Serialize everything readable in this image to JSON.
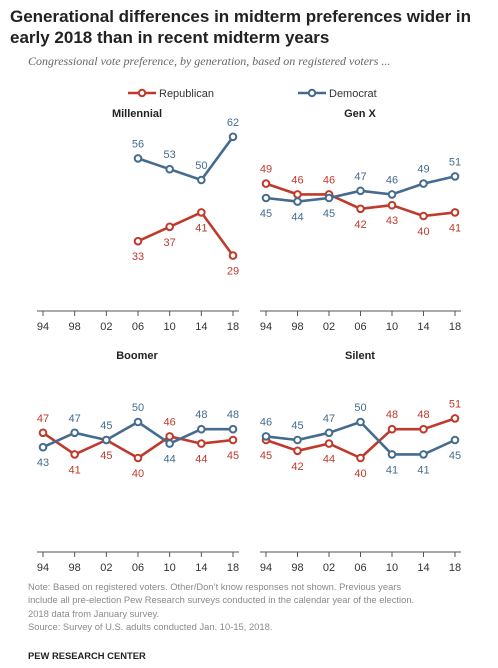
{
  "title": "Generational differences in midterm preferences wider in early 2018 than in recent midterm years",
  "subtitle": "Congressional vote preference, by generation, based on registered voters ...",
  "colors": {
    "republican": "#bf3a2b",
    "democrat": "#456c8e",
    "axis": "#555555",
    "label": "#333333"
  },
  "chart_data": {
    "type": "line",
    "categories": [
      "94",
      "98",
      "02",
      "06",
      "10",
      "14",
      "18"
    ],
    "legend": [
      "Republican",
      "Democrat"
    ],
    "legend_position": "top",
    "ylim": [
      25,
      65
    ],
    "grid": false,
    "panels": [
      {
        "title": "Millennial",
        "series": [
          {
            "name": "Republican",
            "values": [
              null,
              null,
              null,
              33,
              37,
              41,
              29
            ]
          },
          {
            "name": "Democrat",
            "values": [
              null,
              null,
              null,
              56,
              53,
              50,
              62
            ]
          }
        ]
      },
      {
        "title": "Gen X",
        "series": [
          {
            "name": "Republican",
            "values": [
              49,
              46,
              46,
              42,
              43,
              40,
              41
            ]
          },
          {
            "name": "Democrat",
            "values": [
              45,
              44,
              45,
              47,
              46,
              49,
              51
            ]
          }
        ]
      },
      {
        "title": "Boomer",
        "series": [
          {
            "name": "Republican",
            "values": [
              47,
              41,
              45,
              40,
              46,
              44,
              45
            ]
          },
          {
            "name": "Democrat",
            "values": [
              43,
              47,
              45,
              50,
              44,
              48,
              48
            ]
          }
        ]
      },
      {
        "title": "Silent",
        "series": [
          {
            "name": "Republican",
            "values": [
              45,
              42,
              44,
              40,
              48,
              48,
              51
            ]
          },
          {
            "name": "Democrat",
            "values": [
              46,
              45,
              47,
              50,
              41,
              41,
              45
            ]
          }
        ]
      }
    ]
  },
  "notes": [
    "Note: Based on registered voters. Other/Don’t know responses not shown. Previous years",
    "include all pre-election Pew Research surveys conducted in the calendar year of the election.",
    "2018 data from January survey.",
    "Source: Survey of U.S. adults conducted Jan. 10-15, 2018."
  ],
  "org": "PEW RESEARCH CENTER"
}
